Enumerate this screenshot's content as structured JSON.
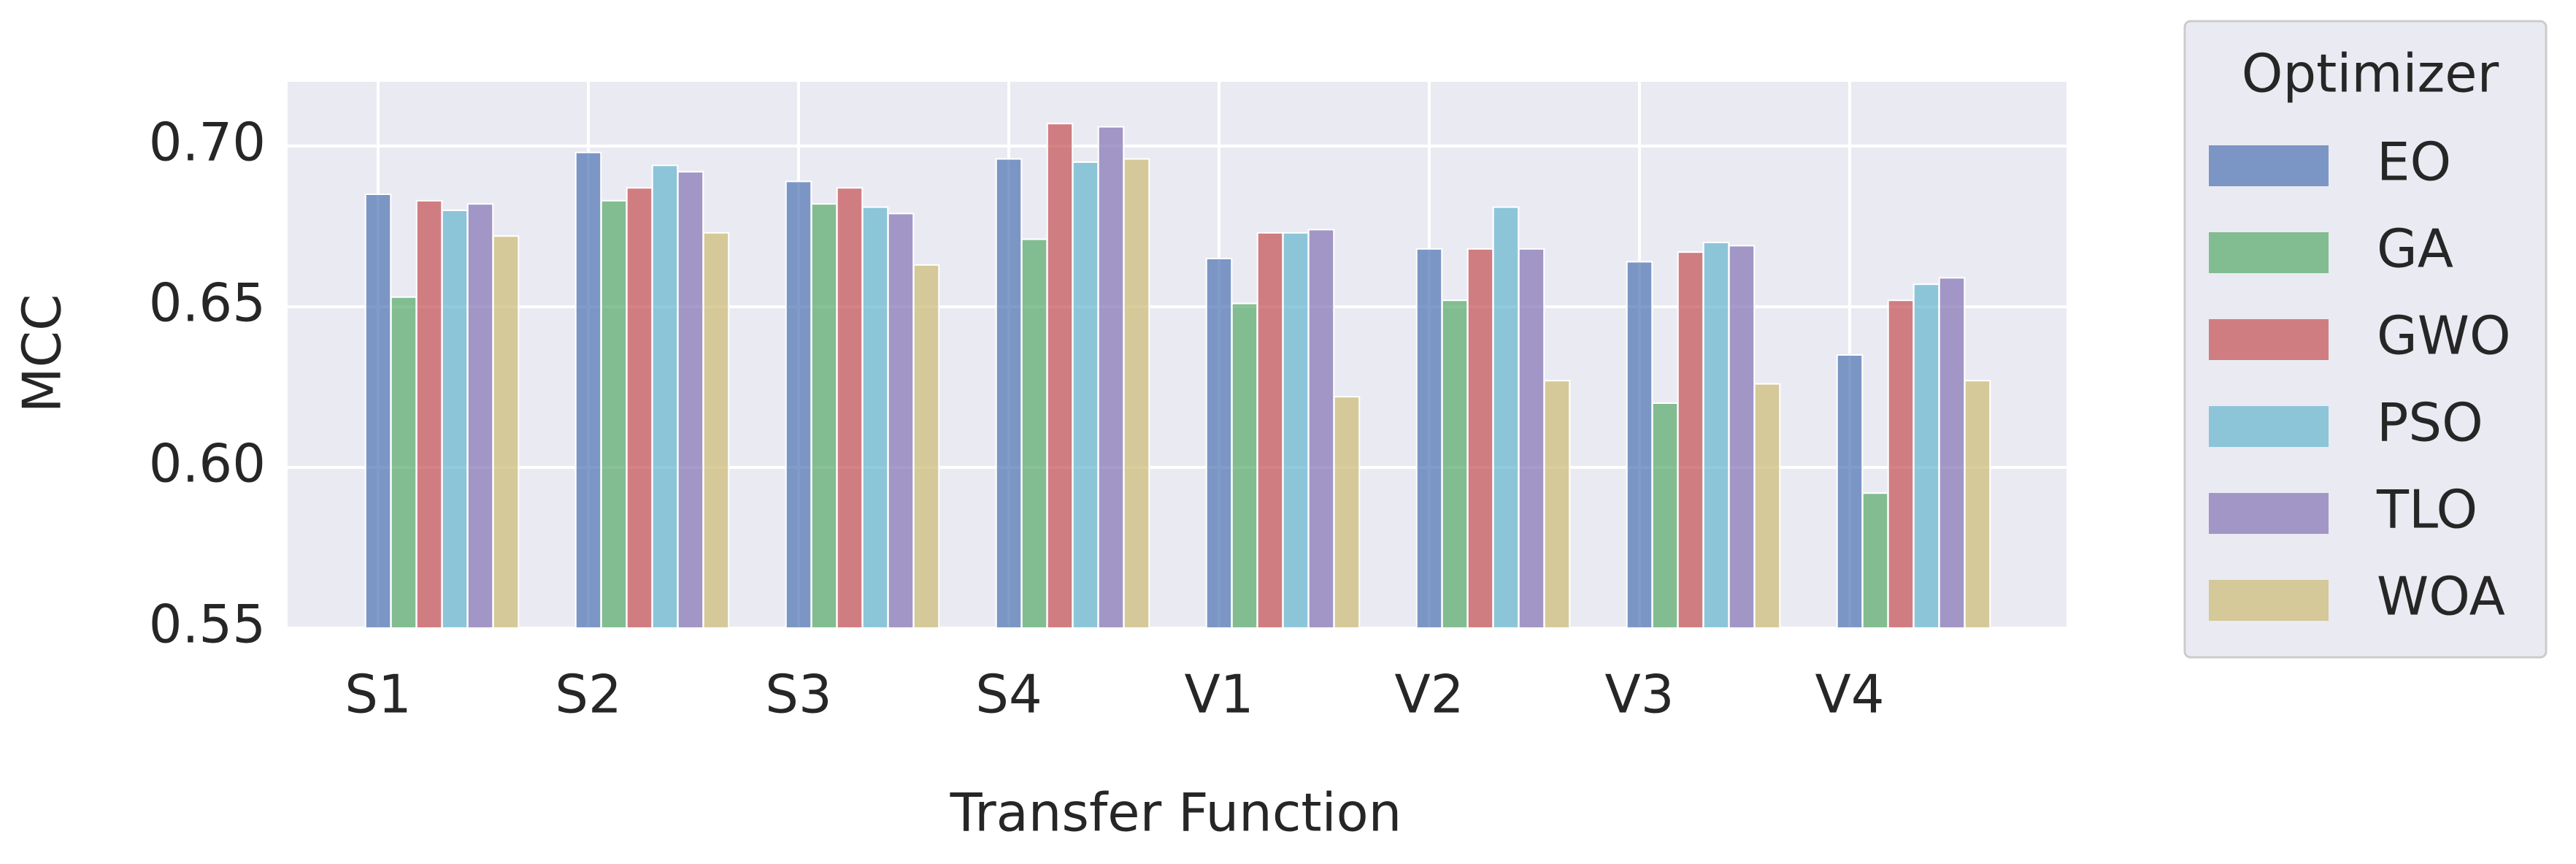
{
  "chart_data": {
    "type": "bar",
    "x_label": "Transfer Function",
    "y_label": "MCC",
    "categories": [
      "S1",
      "S2",
      "S3",
      "S4",
      "V1",
      "V2",
      "V3",
      "V4"
    ],
    "legend_title": "Optimizer",
    "legend_position": "outside right",
    "grid": true,
    "ylim": [
      0.55,
      0.72
    ],
    "yticks": [
      0.55,
      {
        "value": 0.6,
        "label": "0.60"
      },
      0.65,
      {
        "value": 0.7,
        "label": "0.70"
      }
    ],
    "series": [
      {
        "name": "EO",
        "color": "#4c72b0",
        "values": [
          0.685,
          0.698,
          0.689,
          0.696,
          0.665,
          0.668,
          0.664,
          0.635
        ]
      },
      {
        "name": "GA",
        "color": "#55a868",
        "values": [
          0.653,
          0.683,
          0.682,
          0.671,
          0.651,
          0.652,
          0.62,
          0.592
        ]
      },
      {
        "name": "GWO",
        "color": "#c44e52",
        "values": [
          0.683,
          0.687,
          0.687,
          0.707,
          0.673,
          0.668,
          0.667,
          0.652
        ]
      },
      {
        "name": "PSO",
        "color": "#64b5cd",
        "values": [
          0.68,
          0.694,
          0.681,
          0.695,
          0.673,
          0.681,
          0.67,
          0.657
        ]
      },
      {
        "name": "TLO",
        "color": "#8172b2",
        "values": [
          0.682,
          0.692,
          0.679,
          0.706,
          0.674,
          0.668,
          0.669,
          0.659
        ]
      },
      {
        "name": "WOA",
        "color": "#ccb974",
        "values": [
          0.672,
          0.673,
          0.663,
          0.696,
          0.622,
          0.627,
          0.626,
          0.627
        ]
      }
    ]
  }
}
